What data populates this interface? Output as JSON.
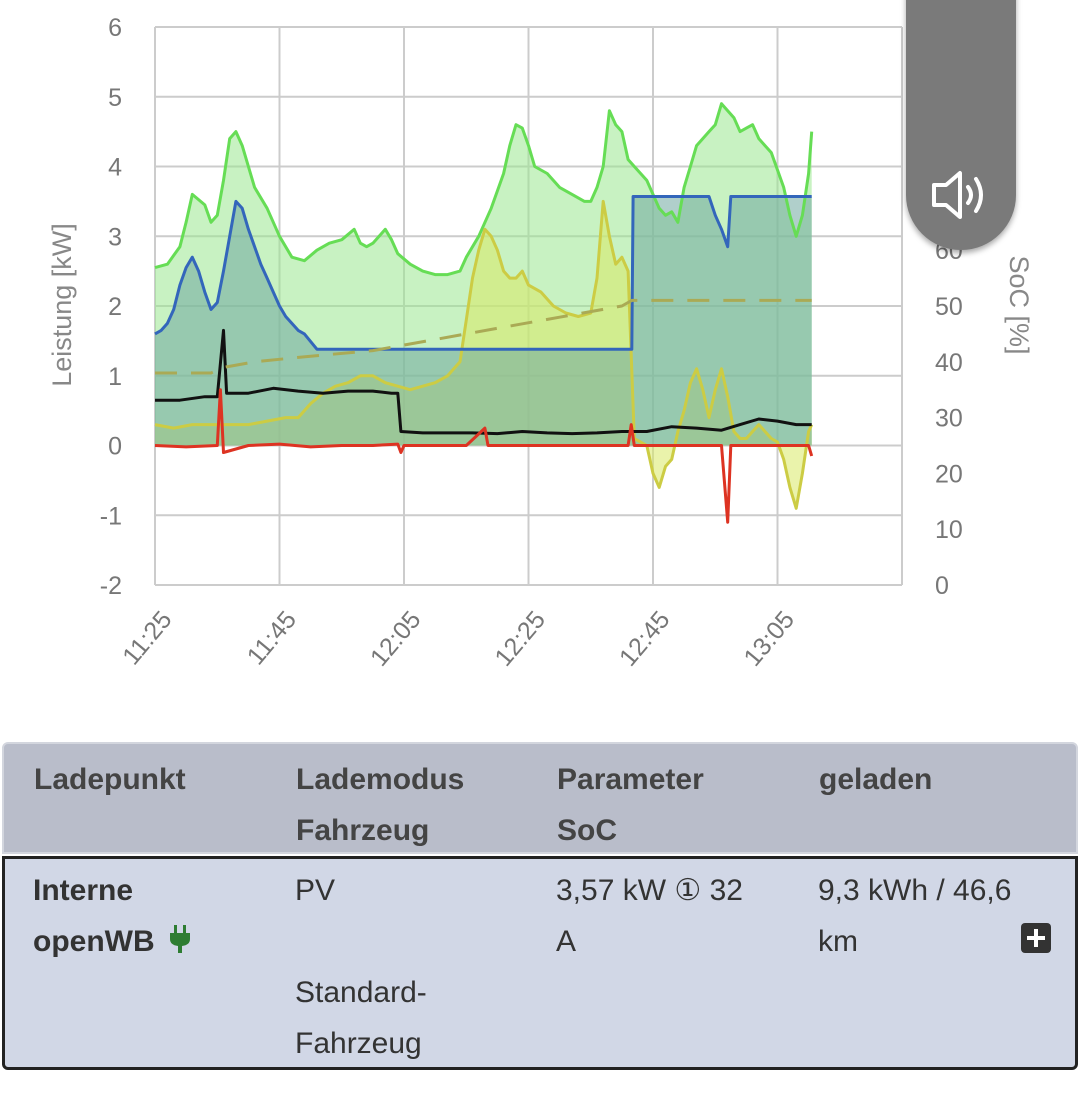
{
  "chart_data": {
    "type": "area",
    "ylabel": "Leistung [kW]",
    "y2label": "SoC [%]",
    "ylim": [
      -2,
      6
    ],
    "y2lim": [
      0,
      100
    ],
    "yticks": [
      "-2",
      "-1",
      "0",
      "1",
      "2",
      "3",
      "4",
      "5",
      "6"
    ],
    "y2ticks": [
      "0",
      "10",
      "20",
      "30",
      "40",
      "50",
      "60"
    ],
    "xticks": [
      "11:25",
      "11:45",
      "12:05",
      "12:25",
      "12:45",
      "13:05"
    ],
    "xlim": [
      85,
      205
    ],
    "grid": true,
    "series": [
      {
        "color": "#66dd55",
        "fill": "#9be88f",
        "points": [
          [
            85,
            2.55
          ],
          [
            87,
            2.6
          ],
          [
            89,
            2.85
          ],
          [
            90,
            3.2
          ],
          [
            91,
            3.6
          ],
          [
            93,
            3.45
          ],
          [
            94,
            3.2
          ],
          [
            95,
            3.3
          ],
          [
            96,
            3.8
          ],
          [
            97,
            4.4
          ],
          [
            98,
            4.5
          ],
          [
            99,
            4.3
          ],
          [
            100,
            4.0
          ],
          [
            101,
            3.7
          ],
          [
            103,
            3.4
          ],
          [
            105,
            3.0
          ],
          [
            107,
            2.7
          ],
          [
            109,
            2.65
          ],
          [
            111,
            2.8
          ],
          [
            113,
            2.9
          ],
          [
            115,
            2.95
          ],
          [
            117,
            3.1
          ],
          [
            118,
            2.9
          ],
          [
            119,
            2.85
          ],
          [
            120,
            2.9
          ],
          [
            121,
            3.0
          ],
          [
            122,
            3.1
          ],
          [
            123,
            2.95
          ],
          [
            124,
            2.75
          ],
          [
            126,
            2.6
          ],
          [
            128,
            2.5
          ],
          [
            130,
            2.45
          ],
          [
            132,
            2.45
          ],
          [
            134,
            2.5
          ],
          [
            135,
            2.7
          ],
          [
            137,
            3.0
          ],
          [
            139,
            3.4
          ],
          [
            141,
            3.9
          ],
          [
            142,
            4.3
          ],
          [
            143,
            4.6
          ],
          [
            144,
            4.55
          ],
          [
            145,
            4.3
          ],
          [
            146,
            4.0
          ],
          [
            148,
            3.9
          ],
          [
            150,
            3.7
          ],
          [
            152,
            3.6
          ],
          [
            154,
            3.5
          ],
          [
            155,
            3.5
          ],
          [
            156,
            3.7
          ],
          [
            157,
            4.0
          ],
          [
            158,
            4.8
          ],
          [
            159,
            4.6
          ],
          [
            160,
            4.5
          ],
          [
            161,
            4.1
          ],
          [
            162,
            4.0
          ],
          [
            164,
            3.8
          ],
          [
            166,
            3.4
          ],
          [
            167,
            3.3
          ],
          [
            168,
            3.35
          ],
          [
            169,
            3.2
          ],
          [
            170,
            3.7
          ],
          [
            171,
            4.0
          ],
          [
            172,
            4.3
          ],
          [
            173,
            4.4
          ],
          [
            174,
            4.5
          ],
          [
            175,
            4.6
          ],
          [
            176,
            4.9
          ],
          [
            177,
            4.8
          ],
          [
            178,
            4.7
          ],
          [
            179,
            4.5
          ],
          [
            180,
            4.55
          ],
          [
            181,
            4.6
          ],
          [
            182,
            4.4
          ],
          [
            183,
            4.3
          ],
          [
            184,
            4.2
          ],
          [
            185,
            3.95
          ],
          [
            186,
            3.7
          ],
          [
            187,
            3.3
          ],
          [
            188,
            3.0
          ],
          [
            189,
            3.3
          ],
          [
            190,
            3.9
          ],
          [
            190.5,
            4.5
          ]
        ]
      },
      {
        "color": "#cccc44",
        "fill": "#d8ea66",
        "points": [
          [
            85,
            0.3
          ],
          [
            88,
            0.25
          ],
          [
            91,
            0.3
          ],
          [
            93,
            0.3
          ],
          [
            95,
            0.3
          ],
          [
            97,
            0.3
          ],
          [
            100,
            0.3
          ],
          [
            103,
            0.35
          ],
          [
            106,
            0.4
          ],
          [
            108,
            0.4
          ],
          [
            110,
            0.6
          ],
          [
            112,
            0.75
          ],
          [
            114,
            0.85
          ],
          [
            116,
            0.9
          ],
          [
            118,
            1.0
          ],
          [
            120,
            1.0
          ],
          [
            122,
            0.9
          ],
          [
            124,
            0.85
          ],
          [
            126,
            0.8
          ],
          [
            128,
            0.85
          ],
          [
            130,
            0.9
          ],
          [
            132,
            1.0
          ],
          [
            134,
            1.2
          ],
          [
            135,
            1.8
          ],
          [
            136,
            2.4
          ],
          [
            137,
            2.8
          ],
          [
            138,
            3.1
          ],
          [
            139,
            3.0
          ],
          [
            140,
            2.8
          ],
          [
            141,
            2.5
          ],
          [
            142,
            2.4
          ],
          [
            143,
            2.4
          ],
          [
            144,
            2.5
          ],
          [
            145,
            2.3
          ],
          [
            147,
            2.2
          ],
          [
            149,
            2.0
          ],
          [
            151,
            1.9
          ],
          [
            153,
            1.85
          ],
          [
            155,
            1.9
          ],
          [
            156,
            2.4
          ],
          [
            157,
            3.5
          ],
          [
            158,
            3.0
          ],
          [
            159,
            2.6
          ],
          [
            160,
            2.7
          ],
          [
            161,
            2.5
          ],
          [
            162,
            0.1
          ],
          [
            164,
            0.0
          ],
          [
            165,
            -0.4
          ],
          [
            166,
            -0.6
          ],
          [
            167,
            -0.3
          ],
          [
            168,
            -0.2
          ],
          [
            169,
            0.2
          ],
          [
            170,
            0.5
          ],
          [
            171,
            0.9
          ],
          [
            172,
            1.1
          ],
          [
            173,
            0.8
          ],
          [
            174,
            0.4
          ],
          [
            175,
            0.8
          ],
          [
            176,
            1.1
          ],
          [
            177,
            0.7
          ],
          [
            178,
            0.2
          ],
          [
            179,
            0.1
          ],
          [
            180,
            0.1
          ],
          [
            181,
            0.2
          ],
          [
            182,
            0.3
          ],
          [
            183,
            0.2
          ],
          [
            184,
            0.1
          ],
          [
            185,
            0.05
          ],
          [
            186,
            -0.2
          ],
          [
            187,
            -0.6
          ],
          [
            188,
            -0.9
          ],
          [
            189,
            -0.4
          ],
          [
            190,
            0.2
          ],
          [
            190.5,
            0.3
          ]
        ]
      },
      {
        "color": "#3366bb",
        "fill": "#6fa8a0",
        "points": [
          [
            85,
            1.6
          ],
          [
            86,
            1.65
          ],
          [
            87,
            1.75
          ],
          [
            88,
            1.95
          ],
          [
            89,
            2.3
          ],
          [
            90,
            2.55
          ],
          [
            91,
            2.7
          ],
          [
            92,
            2.5
          ],
          [
            93,
            2.2
          ],
          [
            94,
            1.95
          ],
          [
            95,
            2.05
          ],
          [
            96,
            2.5
          ],
          [
            97,
            3.0
          ],
          [
            98,
            3.5
          ],
          [
            99,
            3.4
          ],
          [
            100,
            3.1
          ],
          [
            101,
            2.85
          ],
          [
            102,
            2.6
          ],
          [
            103,
            2.4
          ],
          [
            104,
            2.2
          ],
          [
            105,
            2.0
          ],
          [
            106,
            1.85
          ],
          [
            107,
            1.75
          ],
          [
            108,
            1.65
          ],
          [
            109,
            1.6
          ],
          [
            111,
            1.38
          ],
          [
            161.6,
            1.38
          ],
          [
            161.8,
            3.57
          ],
          [
            174,
            3.57
          ],
          [
            175,
            3.3
          ],
          [
            176,
            3.1
          ],
          [
            177,
            2.85
          ],
          [
            177.5,
            3.57
          ],
          [
            190.5,
            3.57
          ]
        ]
      },
      {
        "color": "#111111",
        "points": [
          [
            85,
            0.65
          ],
          [
            89,
            0.65
          ],
          [
            93,
            0.7
          ],
          [
            95,
            0.7
          ],
          [
            96,
            1.65
          ],
          [
            96.5,
            0.75
          ],
          [
            100,
            0.75
          ],
          [
            104,
            0.82
          ],
          [
            108,
            0.78
          ],
          [
            112,
            0.75
          ],
          [
            116,
            0.78
          ],
          [
            120,
            0.78
          ],
          [
            123,
            0.75
          ],
          [
            124,
            0.75
          ],
          [
            124.5,
            0.2
          ],
          [
            128,
            0.18
          ],
          [
            132,
            0.18
          ],
          [
            136,
            0.18
          ],
          [
            140,
            0.17
          ],
          [
            144,
            0.2
          ],
          [
            148,
            0.18
          ],
          [
            152,
            0.17
          ],
          [
            156,
            0.18
          ],
          [
            160,
            0.2
          ],
          [
            164,
            0.2
          ],
          [
            168,
            0.27
          ],
          [
            172,
            0.25
          ],
          [
            176,
            0.22
          ],
          [
            179,
            0.3
          ],
          [
            182,
            0.38
          ],
          [
            185,
            0.35
          ],
          [
            188,
            0.3
          ],
          [
            190.5,
            0.3
          ]
        ]
      },
      {
        "color": "#dd3322",
        "points": [
          [
            85,
            0.0
          ],
          [
            90,
            -0.02
          ],
          [
            95,
            0.0
          ],
          [
            95.5,
            0.8
          ],
          [
            96,
            -0.1
          ],
          [
            100,
            0.0
          ],
          [
            105,
            0.02
          ],
          [
            110,
            -0.02
          ],
          [
            115,
            0.0
          ],
          [
            120,
            0.0
          ],
          [
            124,
            0.02
          ],
          [
            124.5,
            -0.1
          ],
          [
            125,
            0.0
          ],
          [
            130,
            0.0
          ],
          [
            135,
            0.0
          ],
          [
            138,
            0.25
          ],
          [
            138.5,
            0.0
          ],
          [
            145,
            0.0
          ],
          [
            150,
            0.0
          ],
          [
            155,
            0.0
          ],
          [
            158,
            0.0
          ],
          [
            161,
            0.0
          ],
          [
            161.5,
            0.3
          ],
          [
            162,
            0.0
          ],
          [
            165,
            0.0
          ],
          [
            170,
            0.0
          ],
          [
            172,
            0.0
          ],
          [
            176,
            0.0
          ],
          [
            177,
            -1.1
          ],
          [
            177.5,
            0.0
          ],
          [
            182,
            0.0
          ],
          [
            186,
            0.0
          ],
          [
            190,
            0.0
          ],
          [
            190.5,
            -0.15
          ]
        ]
      },
      {
        "color": "#aaaa55",
        "dashed": true,
        "axis": "y2",
        "points": [
          [
            85,
            38
          ],
          [
            94,
            38
          ],
          [
            96,
            39
          ],
          [
            101,
            40
          ],
          [
            110,
            41
          ],
          [
            120,
            42
          ],
          [
            130,
            44
          ],
          [
            140,
            46
          ],
          [
            150,
            48
          ],
          [
            160,
            50
          ],
          [
            161.6,
            51
          ],
          [
            170,
            51
          ],
          [
            180,
            51
          ],
          [
            190.5,
            51
          ]
        ]
      }
    ]
  },
  "volume": {
    "icon": "speaker-volume-icon"
  },
  "table": {
    "headers": [
      {
        "line1": "Ladepunkt",
        "line2": ""
      },
      {
        "line1": "Lademodus",
        "line2": "Fahrzeug"
      },
      {
        "line1": "Parameter",
        "line2": "SoC"
      },
      {
        "line1": "geladen",
        "line2": ""
      }
    ],
    "row": {
      "ladepunkt_line1": "Interne",
      "ladepunkt_line2": "openWB",
      "plug_icon": "plug-icon",
      "plug_color": "#2e7d32",
      "lademodus": "PV",
      "fahrzeug_line1": "Standard-",
      "fahrzeug_line2": "Fahrzeug",
      "parameter_line1": "3,57 kW ① 32",
      "parameter_line2": "A",
      "geladen_line1": "9,3 kWh / 46,6",
      "geladen_line2": "km",
      "expand_icon": "plus-square-icon"
    }
  }
}
